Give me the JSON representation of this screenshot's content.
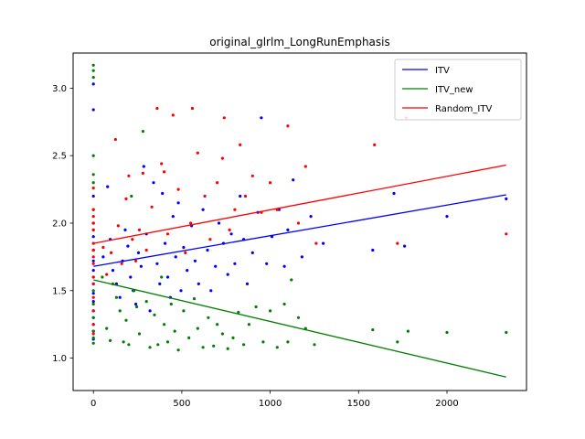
{
  "chart_data": {
    "type": "scatter",
    "title": "original_glrlm_LongRunEmphasis",
    "xlabel": "",
    "ylabel": "",
    "xlim": [
      -115,
      2450
    ],
    "ylim": [
      0.76,
      3.26
    ],
    "xticks": [
      0,
      500,
      1000,
      1500,
      2000
    ],
    "yticks": [
      1.0,
      1.5,
      2.0,
      2.5,
      3.0
    ],
    "xtick_labels": [
      "0",
      "500",
      "1000",
      "1500",
      "2000"
    ],
    "ytick_labels": [
      "1.0",
      "1.5",
      "2.0",
      "2.5",
      "3.0"
    ],
    "grid": false,
    "legend_position": "top-right",
    "series": [
      {
        "name": "ITV",
        "color": "#0000ff",
        "fit": [
          [
            0,
            1.68
          ],
          [
            2335,
            2.21
          ]
        ],
        "points": [
          [
            0,
            3.03
          ],
          [
            0,
            2.84
          ],
          [
            0,
            2.2
          ],
          [
            0,
            2.0
          ],
          [
            0,
            1.9
          ],
          [
            0,
            1.8
          ],
          [
            0,
            1.72
          ],
          [
            0,
            1.65
          ],
          [
            0,
            1.55
          ],
          [
            0,
            1.48
          ],
          [
            0,
            1.42
          ],
          [
            0,
            1.35
          ],
          [
            0,
            1.3
          ],
          [
            0,
            1.25
          ],
          [
            0,
            1.2
          ],
          [
            0,
            1.14
          ],
          [
            55,
            1.75
          ],
          [
            80,
            2.27
          ],
          [
            95,
            1.88
          ],
          [
            110,
            1.65
          ],
          [
            130,
            1.55
          ],
          [
            150,
            1.45
          ],
          [
            165,
            1.72
          ],
          [
            180,
            1.95
          ],
          [
            195,
            1.83
          ],
          [
            210,
            1.6
          ],
          [
            225,
            1.5
          ],
          [
            240,
            1.4
          ],
          [
            255,
            1.78
          ],
          [
            270,
            1.68
          ],
          [
            285,
            2.42
          ],
          [
            300,
            1.92
          ],
          [
            320,
            1.35
          ],
          [
            340,
            2.3
          ],
          [
            360,
            1.7
          ],
          [
            375,
            1.55
          ],
          [
            390,
            2.22
          ],
          [
            405,
            1.85
          ],
          [
            420,
            1.6
          ],
          [
            435,
            1.45
          ],
          [
            450,
            2.05
          ],
          [
            465,
            1.75
          ],
          [
            480,
            2.15
          ],
          [
            495,
            1.5
          ],
          [
            510,
            1.82
          ],
          [
            530,
            1.65
          ],
          [
            555,
            1.98
          ],
          [
            575,
            1.72
          ],
          [
            595,
            1.55
          ],
          [
            620,
            2.1
          ],
          [
            645,
            1.8
          ],
          [
            665,
            1.5
          ],
          [
            690,
            1.68
          ],
          [
            710,
            2.0
          ],
          [
            735,
            1.85
          ],
          [
            760,
            1.62
          ],
          [
            780,
            1.92
          ],
          [
            800,
            1.7
          ],
          [
            830,
            2.2
          ],
          [
            850,
            1.88
          ],
          [
            870,
            1.55
          ],
          [
            900,
            1.78
          ],
          [
            930,
            2.08
          ],
          [
            950,
            2.78
          ],
          [
            980,
            1.7
          ],
          [
            1010,
            1.9
          ],
          [
            1050,
            2.1
          ],
          [
            1080,
            1.68
          ],
          [
            1100,
            1.95
          ],
          [
            1130,
            2.32
          ],
          [
            1180,
            1.75
          ],
          [
            1230,
            2.05
          ],
          [
            1300,
            1.85
          ],
          [
            1580,
            1.8
          ],
          [
            1700,
            2.22
          ],
          [
            1760,
            1.83
          ],
          [
            2000,
            2.05
          ],
          [
            2335,
            2.18
          ]
        ]
      },
      {
        "name": "ITV_new",
        "color": "#008000",
        "fit": [
          [
            0,
            1.58
          ],
          [
            2335,
            0.86
          ]
        ],
        "points": [
          [
            0,
            3.17
          ],
          [
            0,
            3.13
          ],
          [
            0,
            3.08
          ],
          [
            0,
            2.5
          ],
          [
            0,
            2.36
          ],
          [
            0,
            2.3
          ],
          [
            0,
            2.1
          ],
          [
            0,
            1.95
          ],
          [
            0,
            1.8
          ],
          [
            0,
            1.6
          ],
          [
            0,
            1.5
          ],
          [
            0,
            1.4
          ],
          [
            0,
            1.3
          ],
          [
            0,
            1.2
          ],
          [
            0,
            1.15
          ],
          [
            0,
            1.11
          ],
          [
            50,
            1.6
          ],
          [
            75,
            1.22
          ],
          [
            95,
            1.13
          ],
          [
            110,
            1.55
          ],
          [
            130,
            1.45
          ],
          [
            150,
            1.35
          ],
          [
            170,
            1.12
          ],
          [
            185,
            1.28
          ],
          [
            200,
            1.1
          ],
          [
            215,
            2.2
          ],
          [
            230,
            1.5
          ],
          [
            245,
            1.38
          ],
          [
            260,
            1.18
          ],
          [
            280,
            2.68
          ],
          [
            300,
            1.42
          ],
          [
            320,
            1.08
          ],
          [
            345,
            1.32
          ],
          [
            365,
            1.1
          ],
          [
            385,
            1.6
          ],
          [
            400,
            1.25
          ],
          [
            420,
            1.12
          ],
          [
            440,
            1.4
          ],
          [
            460,
            1.2
          ],
          [
            480,
            1.06
          ],
          [
            510,
            1.35
          ],
          [
            540,
            1.15
          ],
          [
            570,
            1.44
          ],
          [
            590,
            1.22
          ],
          [
            620,
            1.08
          ],
          [
            650,
            1.3
          ],
          [
            680,
            1.09
          ],
          [
            700,
            1.25
          ],
          [
            730,
            1.18
          ],
          [
            760,
            1.07
          ],
          [
            790,
            1.15
          ],
          [
            820,
            1.34
          ],
          [
            850,
            1.1
          ],
          [
            880,
            1.25
          ],
          [
            920,
            1.38
          ],
          [
            960,
            1.12
          ],
          [
            1000,
            1.35
          ],
          [
            1040,
            1.08
          ],
          [
            1080,
            1.4
          ],
          [
            1100,
            1.12
          ],
          [
            1120,
            1.58
          ],
          [
            1160,
            1.3
          ],
          [
            1200,
            1.22
          ],
          [
            1250,
            1.1
          ],
          [
            1580,
            1.21
          ],
          [
            1720,
            1.12
          ],
          [
            1780,
            1.2
          ],
          [
            2000,
            1.19
          ],
          [
            2335,
            1.19
          ]
        ]
      },
      {
        "name": "Random_ITV",
        "color": "#ff0000",
        "fit": [
          [
            0,
            1.85
          ],
          [
            2335,
            2.43
          ]
        ],
        "points": [
          [
            0,
            2.26
          ],
          [
            0,
            2.1
          ],
          [
            0,
            2.05
          ],
          [
            0,
            2.0
          ],
          [
            0,
            1.95
          ],
          [
            0,
            1.85
          ],
          [
            0,
            1.8
          ],
          [
            0,
            1.75
          ],
          [
            0,
            1.7
          ],
          [
            0,
            1.6
          ],
          [
            0,
            1.55
          ],
          [
            0,
            1.45
          ],
          [
            0,
            1.35
          ],
          [
            0,
            1.25
          ],
          [
            0,
            1.18
          ],
          [
            55,
            1.82
          ],
          [
            75,
            1.62
          ],
          [
            100,
            1.78
          ],
          [
            125,
            2.62
          ],
          [
            140,
            1.98
          ],
          [
            160,
            1.7
          ],
          [
            185,
            2.18
          ],
          [
            200,
            2.35
          ],
          [
            220,
            1.88
          ],
          [
            240,
            1.72
          ],
          [
            260,
            1.95
          ],
          [
            280,
            2.37
          ],
          [
            300,
            1.8
          ],
          [
            330,
            2.12
          ],
          [
            360,
            2.85
          ],
          [
            385,
            2.44
          ],
          [
            400,
            2.38
          ],
          [
            420,
            1.92
          ],
          [
            450,
            2.8
          ],
          [
            480,
            2.25
          ],
          [
            520,
            1.78
          ],
          [
            550,
            2.0
          ],
          [
            560,
            2.85
          ],
          [
            590,
            2.52
          ],
          [
            630,
            2.2
          ],
          [
            660,
            1.88
          ],
          [
            700,
            2.3
          ],
          [
            730,
            2.48
          ],
          [
            740,
            2.78
          ],
          [
            770,
            1.95
          ],
          [
            800,
            2.1
          ],
          [
            830,
            2.58
          ],
          [
            860,
            2.2
          ],
          [
            900,
            2.35
          ],
          [
            950,
            2.08
          ],
          [
            1000,
            2.3
          ],
          [
            1040,
            2.1
          ],
          [
            1100,
            2.72
          ],
          [
            1160,
            2.0
          ],
          [
            1200,
            2.42
          ],
          [
            1260,
            1.85
          ],
          [
            1590,
            2.58
          ],
          [
            1720,
            1.85
          ],
          [
            1770,
            2.78
          ],
          [
            2335,
            1.92
          ]
        ]
      }
    ]
  }
}
